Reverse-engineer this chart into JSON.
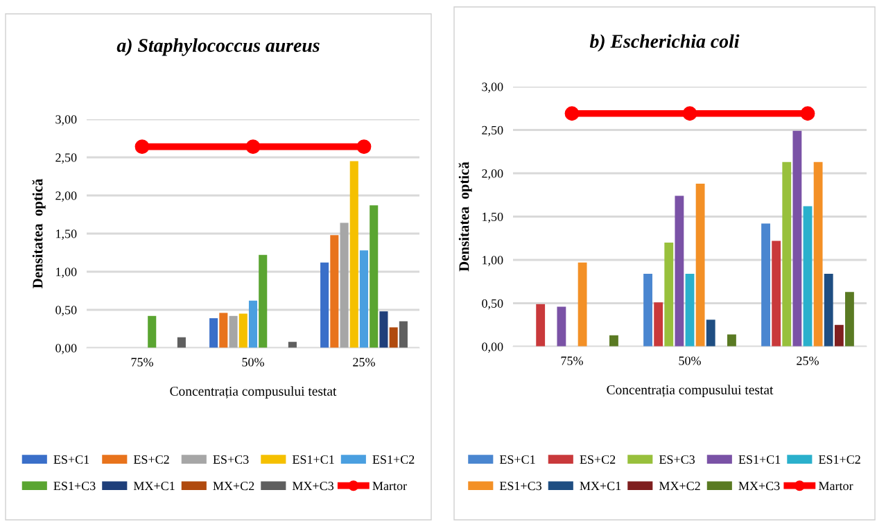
{
  "chart_data": [
    {
      "type": "bar",
      "title": "a) Staphylococcus aureus",
      "xlabel": "Concentrația compusului testat",
      "ylabel": "Densitatea  optică",
      "categories": [
        "75%",
        "50%",
        "25%"
      ],
      "ylim": [
        0,
        3
      ],
      "yticks": [
        {
          "value": 0,
          "label": "0,00"
        },
        {
          "value": 0.5,
          "label": "0,50"
        },
        {
          "value": 1,
          "label": "1,00"
        },
        {
          "value": 1.5,
          "label": "1,50"
        },
        {
          "value": 2,
          "label": "2,00"
        },
        {
          "value": 2.5,
          "label": "2,50"
        },
        {
          "value": 3,
          "label": "3,00"
        }
      ],
      "grid": "y",
      "legend": "bottom",
      "series": [
        {
          "name": "ES+C1",
          "color": "#3a6fc9",
          "values": [
            0,
            0.39,
            1.12
          ]
        },
        {
          "name": "ES+C2",
          "color": "#e8731c",
          "values": [
            0,
            0.46,
            1.48
          ]
        },
        {
          "name": "ES+C3",
          "color": "#a6a6a6",
          "values": [
            0,
            0.42,
            1.64
          ]
        },
        {
          "name": "ES1+C1",
          "color": "#f5c000",
          "values": [
            0,
            0.45,
            2.45
          ]
        },
        {
          "name": "ES1+C2",
          "color": "#4a9fe0",
          "values": [
            0,
            0.62,
            1.28
          ]
        },
        {
          "name": "ES1+C3",
          "color": "#5aa531",
          "values": [
            0.42,
            1.22,
            1.87
          ]
        },
        {
          "name": "MX+C1",
          "color": "#1f3f7a",
          "values": [
            0,
            0,
            0.48
          ]
        },
        {
          "name": "MX+C2",
          "color": "#b04a0e",
          "values": [
            0,
            0,
            0.27
          ]
        },
        {
          "name": "MX+C3",
          "color": "#5f5f5f",
          "values": [
            0.14,
            0.08,
            0.35
          ]
        },
        {
          "name": "Martor",
          "type": "line",
          "marker": "circle",
          "color": "#ff0000",
          "values": [
            2.64,
            2.64,
            2.64
          ]
        }
      ]
    },
    {
      "type": "bar",
      "title": "b) Escherichia coli",
      "xlabel": "Concentrația compusului testat",
      "ylabel": "Densitatea  optică",
      "categories": [
        "75%",
        "50%",
        "25%"
      ],
      "ylim": [
        0,
        3
      ],
      "yticks": [
        {
          "value": 0,
          "label": "0,00"
        },
        {
          "value": 0.5,
          "label": "0,50"
        },
        {
          "value": 1,
          "label": "1,00"
        },
        {
          "value": 1.5,
          "label": "1,50"
        },
        {
          "value": 2,
          "label": "2,00"
        },
        {
          "value": 2.5,
          "label": "2,50"
        },
        {
          "value": 3,
          "label": "3,00"
        }
      ],
      "grid": "y",
      "legend": "bottom",
      "series": [
        {
          "name": "ES+C1",
          "color": "#4a86d0",
          "values": [
            null,
            0.84,
            1.42
          ]
        },
        {
          "name": "ES+C2",
          "color": "#c9393b",
          "values": [
            0.49,
            0.51,
            1.22
          ]
        },
        {
          "name": "ES+C3",
          "color": "#98c03c",
          "values": [
            0,
            1.2,
            2.13
          ]
        },
        {
          "name": "ES1+C1",
          "color": "#7a52a6",
          "values": [
            0.46,
            1.74,
            2.49
          ]
        },
        {
          "name": "ES1+C2",
          "color": "#2ab0cc",
          "values": [
            0,
            0.84,
            1.62
          ]
        },
        {
          "name": "ES1+C3",
          "color": "#f39026",
          "values": [
            0.97,
            1.88,
            2.13
          ]
        },
        {
          "name": "MX+C1",
          "color": "#1f4e82",
          "values": [
            0,
            0.31,
            0.84
          ]
        },
        {
          "name": "MX+C2",
          "color": "#7f1f1f",
          "values": [
            0,
            0,
            0.25
          ]
        },
        {
          "name": "MX+C3",
          "color": "#5a7a23",
          "values": [
            0.13,
            0.14,
            0.63
          ]
        },
        {
          "name": "Martor",
          "type": "line",
          "marker": "circle",
          "color": "#ff0000",
          "values": [
            2.69,
            2.69,
            2.69
          ]
        }
      ]
    }
  ]
}
